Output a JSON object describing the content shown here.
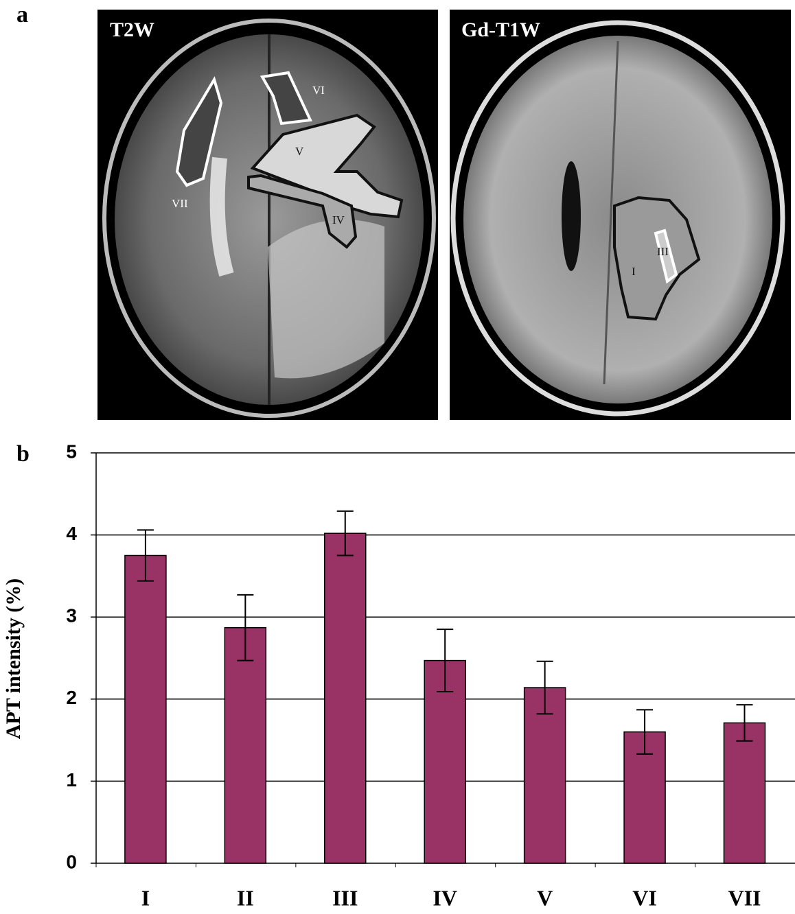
{
  "panel_labels": [
    "a",
    "b"
  ],
  "images": [
    {
      "title": "T2W",
      "roi_labels": [
        "VI",
        "V",
        "IV",
        "VII"
      ]
    },
    {
      "title": "Gd-T1W",
      "roi_labels": [
        "III",
        "I"
      ]
    }
  ],
  "chart_data": {
    "type": "bar",
    "y_label": "APT intensity (%)",
    "categories": [
      "I",
      "II",
      "III",
      "IV",
      "V",
      "VI",
      "VII"
    ],
    "values": [
      3.75,
      2.87,
      4.02,
      2.47,
      2.14,
      1.6,
      1.71
    ],
    "errors": [
      0.31,
      0.4,
      0.27,
      0.38,
      0.32,
      0.27,
      0.22
    ],
    "color": "#993366",
    "ylim": [
      0,
      5
    ],
    "yticks": [
      0,
      1,
      2,
      3,
      4,
      5
    ],
    "grid": true
  }
}
